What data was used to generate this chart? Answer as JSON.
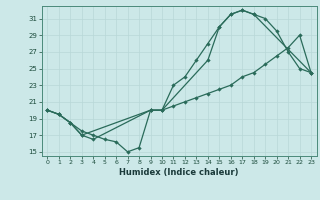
{
  "xlabel": "Humidex (Indice chaleur)",
  "background_color": "#cce8e8",
  "grid_color": "#b8d8d8",
  "line_color": "#2a6b5a",
  "xlim": [
    -0.5,
    23.5
  ],
  "ylim": [
    14.5,
    32.5
  ],
  "yticks": [
    15,
    17,
    19,
    21,
    23,
    25,
    27,
    29,
    31
  ],
  "xticks": [
    0,
    1,
    2,
    3,
    4,
    5,
    6,
    7,
    8,
    9,
    10,
    11,
    12,
    13,
    14,
    15,
    16,
    17,
    18,
    19,
    20,
    21,
    22,
    23
  ],
  "line1_x": [
    0,
    1,
    2,
    3,
    4,
    5,
    6,
    7,
    8,
    9,
    10,
    11,
    12,
    13,
    14,
    15,
    16,
    17,
    18,
    23
  ],
  "line1_y": [
    20,
    19.5,
    18.5,
    17.5,
    17,
    16.5,
    16.2,
    15,
    15.5,
    20,
    20,
    23,
    24,
    26,
    28,
    30,
    31.5,
    32,
    31.5,
    24.5
  ],
  "line2_x": [
    0,
    1,
    2,
    3,
    4,
    9,
    10,
    14,
    15,
    16,
    17,
    18,
    19,
    20,
    21,
    22,
    23
  ],
  "line2_y": [
    20,
    19.5,
    18.5,
    17,
    16.5,
    20,
    20,
    26,
    30,
    31.5,
    32,
    31.5,
    31,
    29.5,
    27,
    25,
    24.5
  ],
  "line3_x": [
    0,
    1,
    2,
    3,
    9,
    10,
    11,
    12,
    13,
    14,
    15,
    16,
    17,
    18,
    19,
    20,
    21,
    22,
    23
  ],
  "line3_y": [
    20,
    19.5,
    18.5,
    17,
    20,
    20,
    20.5,
    21,
    21.5,
    22,
    22.5,
    23,
    24,
    24.5,
    25.5,
    26.5,
    27.5,
    29,
    24.5
  ]
}
